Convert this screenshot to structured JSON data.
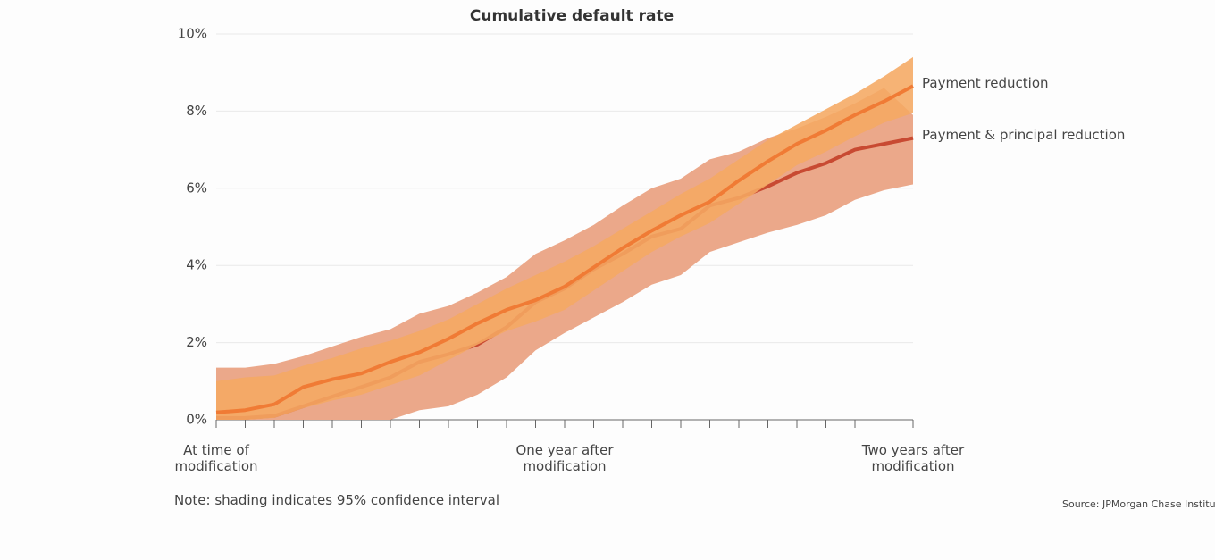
{
  "chart_data": {
    "type": "line",
    "title": "Cumulative default rate",
    "note": "Note: shading indicates 95% confidence interval",
    "source": "Source: JPMorgan Chase Institute",
    "categories": [
      "At time of modification",
      null,
      null,
      null,
      null,
      null,
      null,
      null,
      null,
      null,
      null,
      null,
      "One year after modification",
      null,
      null,
      null,
      null,
      null,
      null,
      null,
      null,
      null,
      null,
      null,
      "Two years after modification"
    ],
    "ylim": [
      0,
      10
    ],
    "yticks": [
      {
        "value": 0,
        "label": "0%"
      },
      {
        "value": 2,
        "label": "2%"
      },
      {
        "value": 4,
        "label": "4%"
      },
      {
        "value": 6,
        "label": "6%"
      },
      {
        "value": 8,
        "label": "8%"
      },
      {
        "value": 10,
        "label": "10%"
      }
    ],
    "grid": true,
    "series": [
      {
        "name": "Payment & principal reduction",
        "color": "#c84a32",
        "band_color": "#eba88a",
        "values": [
          0.05,
          0.05,
          0.1,
          0.35,
          0.6,
          0.85,
          1.1,
          1.5,
          1.7,
          1.95,
          2.4,
          3.05,
          3.4,
          3.9,
          4.3,
          4.75,
          4.95,
          5.55,
          5.75,
          6.05,
          6.4,
          6.65,
          7.0,
          7.15,
          7.3
        ],
        "upper": [
          1.35,
          1.35,
          1.45,
          1.65,
          1.9,
          2.15,
          2.35,
          2.75,
          2.95,
          3.3,
          3.7,
          4.3,
          4.65,
          5.05,
          5.55,
          6.0,
          6.25,
          6.75,
          6.95,
          7.3,
          7.55,
          7.85,
          8.2,
          8.6,
          7.9
        ],
        "lower": [
          0,
          0,
          0,
          0,
          0,
          0,
          0,
          0.25,
          0.35,
          0.65,
          1.1,
          1.8,
          2.25,
          2.65,
          3.05,
          3.5,
          3.75,
          4.35,
          4.6,
          4.85,
          5.05,
          5.3,
          5.7,
          5.95,
          6.1
        ]
      },
      {
        "name": "Payment reduction",
        "color": "#f07b35",
        "band_color": "#f5a862",
        "values": [
          0.19,
          0.25,
          0.4,
          0.85,
          1.05,
          1.2,
          1.5,
          1.75,
          2.1,
          2.5,
          2.85,
          3.1,
          3.45,
          3.95,
          4.45,
          4.9,
          5.3,
          5.65,
          6.2,
          6.7,
          7.15,
          7.5,
          7.9,
          8.25,
          8.65
        ],
        "upper": [
          1.0,
          1.1,
          1.15,
          1.4,
          1.6,
          1.85,
          2.05,
          2.3,
          2.6,
          3.0,
          3.4,
          3.75,
          4.1,
          4.5,
          4.95,
          5.4,
          5.85,
          6.25,
          6.75,
          7.25,
          7.65,
          8.05,
          8.45,
          8.9,
          9.4
        ],
        "lower": [
          0,
          0,
          0.05,
          0.3,
          0.5,
          0.65,
          0.9,
          1.15,
          1.55,
          1.95,
          2.3,
          2.55,
          2.85,
          3.35,
          3.85,
          4.35,
          4.75,
          5.1,
          5.6,
          6.1,
          6.6,
          6.95,
          7.35,
          7.7,
          7.95
        ]
      }
    ]
  }
}
